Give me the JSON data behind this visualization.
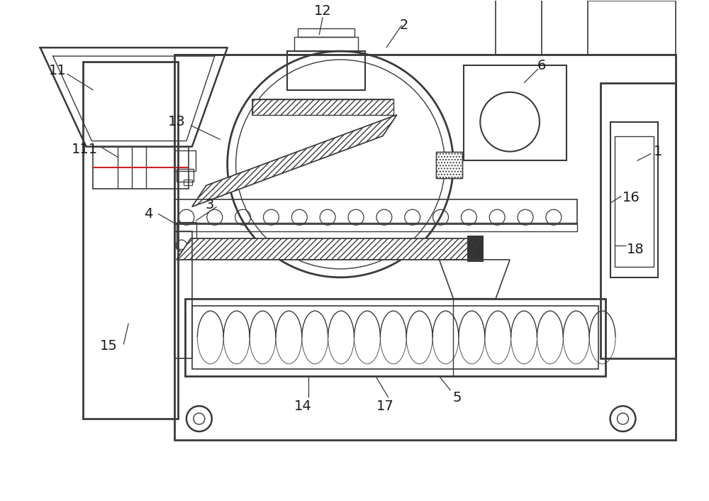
{
  "bg_color": "#ffffff",
  "line_color": "#3a3a3a",
  "label_color": "#1a1a1a",
  "figsize": [
    10.0,
    7.06
  ],
  "dpi": 100
}
